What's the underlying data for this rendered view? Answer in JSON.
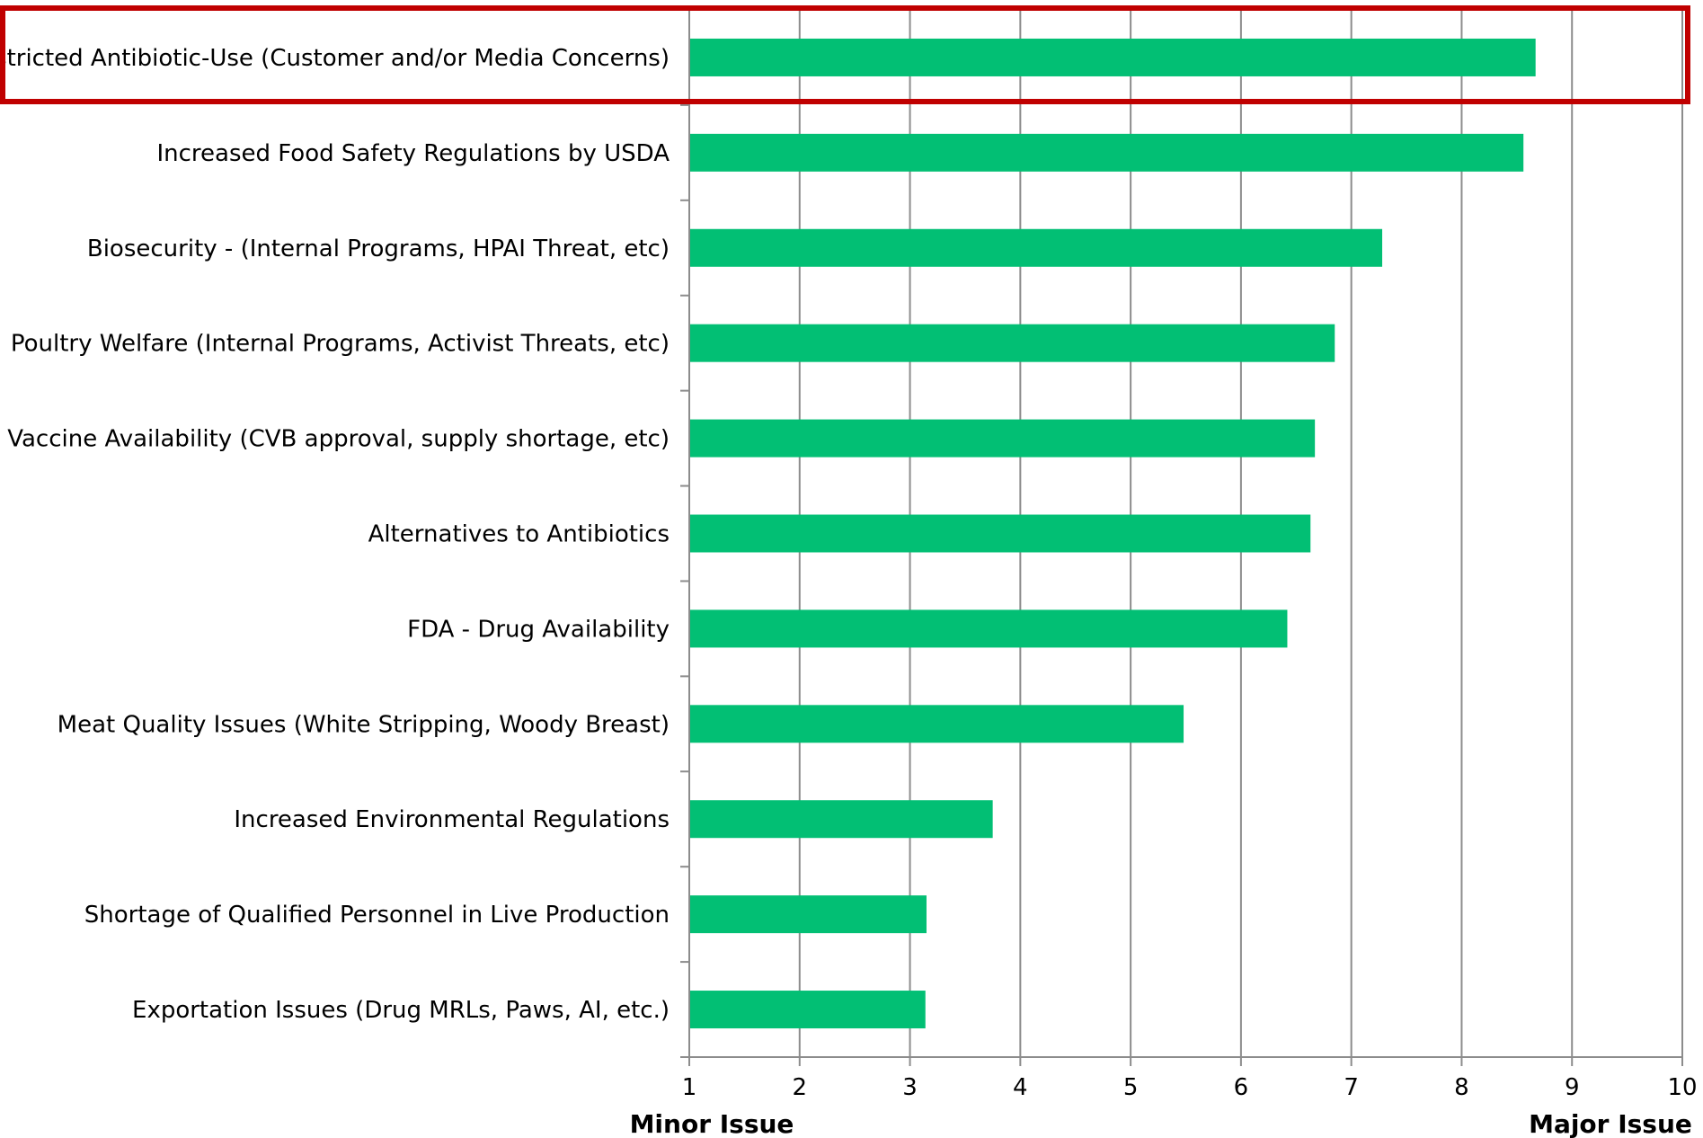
{
  "chart_data": {
    "type": "bar",
    "orientation": "horizontal",
    "categories": [
      "Restricted Antibiotic-Use (Customer and/or Media Concerns)",
      "Increased Food Safety Regulations by USDA",
      "Biosecurity - (Internal Programs, HPAI Threat, etc)",
      "Poultry Welfare (Internal Programs, Activist Threats, etc)",
      "Vaccine Availability (CVB approval, supply shortage, etc)",
      "Alternatives to Antibiotics",
      "FDA - Drug Availability",
      "Meat Quality Issues (White Stripping, Woody Breast)",
      "Increased Environmental Regulations",
      "Shortage of Qualified Personnel in Live Production",
      "Exportation Issues (Drug MRLs, Paws, AI, etc.)"
    ],
    "values": [
      8.67,
      8.56,
      7.28,
      6.85,
      6.67,
      6.63,
      6.42,
      5.48,
      3.75,
      3.15,
      3.14
    ],
    "xlim": [
      1,
      10
    ],
    "xticks": [
      1,
      2,
      3,
      4,
      5,
      6,
      7,
      8,
      9,
      10
    ],
    "xlabel_min": "Minor Issue",
    "xlabel_max": "Major Issue",
    "grid": true,
    "bar_color": "#02BF74",
    "grid_color": "#8C8C8C",
    "highlight": {
      "category": "Restricted Antibiotic-Use (Customer and/or Media Concerns)",
      "color": "#C00000"
    }
  }
}
